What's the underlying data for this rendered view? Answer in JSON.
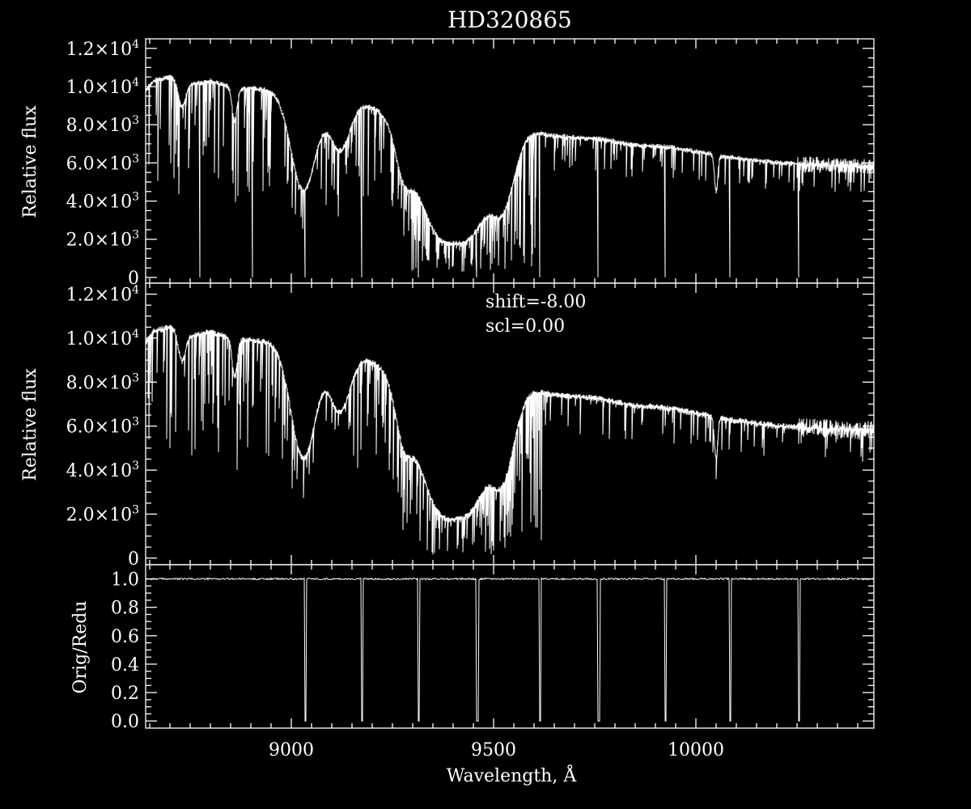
{
  "chart_data": [
    {
      "type": "line",
      "panel": "top",
      "title": "HD320865",
      "ylabel": "Relative flux",
      "xlim": [
        8640,
        10440
      ],
      "ylim": [
        -300,
        12500
      ],
      "yticks": [
        {
          "m": "",
          "e": "",
          "plain": "0",
          "value": 0
        },
        {
          "m": "2.0",
          "e": "3",
          "value": 2000
        },
        {
          "m": "4.0",
          "e": "3",
          "value": 4000
        },
        {
          "m": "6.0",
          "e": "3",
          "value": 6000
        },
        {
          "m": "8.0",
          "e": "3",
          "value": 8000
        },
        {
          "m": "1.0",
          "e": "4",
          "value": 10000
        },
        {
          "m": "1.2",
          "e": "4",
          "value": 12000
        }
      ],
      "order_gaps": [
        8775,
        8905,
        9035,
        9175,
        9315,
        9460,
        9615,
        9760,
        9925,
        10085,
        10255
      ],
      "series": [
        {
          "continuum": [
            [
              8640,
              9800
            ],
            [
              8660,
              10300
            ],
            [
              8700,
              10500
            ],
            [
              8760,
              10100
            ],
            [
              8800,
              10300
            ],
            [
              8860,
              9900
            ],
            [
              8900,
              9900
            ],
            [
              8960,
              9800
            ],
            [
              9040,
              9400
            ],
            [
              9100,
              9300
            ],
            [
              9160,
              9200
            ],
            [
              9220,
              8900
            ],
            [
              9280,
              8600
            ],
            [
              9360,
              8450
            ],
            [
              9440,
              8300
            ],
            [
              9480,
              8200
            ],
            [
              9520,
              8000
            ],
            [
              9580,
              7700
            ],
            [
              9650,
              7400
            ],
            [
              9760,
              7250
            ],
            [
              9840,
              6950
            ],
            [
              9940,
              6800
            ],
            [
              10080,
              6300
            ],
            [
              10200,
              6000
            ],
            [
              10300,
              5900
            ],
            [
              10440,
              5800
            ]
          ],
          "broad_features": [
            [
              8730,
              0.13,
              9
            ],
            [
              8860,
              0.17,
              6
            ],
            [
              9030,
              0.52,
              30
            ],
            [
              9120,
              0.28,
              25
            ],
            [
              9280,
              0.28,
              20
            ],
            [
              9370,
              0.7,
              60
            ],
            [
              9440,
              0.62,
              50
            ],
            [
              9520,
              0.5,
              30
            ],
            [
              10050,
              0.3,
              4
            ]
          ]
        }
      ]
    },
    {
      "type": "line",
      "panel": "middle",
      "ylabel": "Relative flux",
      "annotation": [
        "shift=-8.00",
        "scl=0.00"
      ],
      "xlim": [
        8640,
        10440
      ],
      "ylim": [
        -300,
        12500
      ],
      "yticks": [
        {
          "m": "",
          "e": "",
          "plain": "0",
          "value": 0
        },
        {
          "m": "2.0",
          "e": "3",
          "value": 2000
        },
        {
          "m": "4.0",
          "e": "3",
          "value": 4000
        },
        {
          "m": "6.0",
          "e": "3",
          "value": 6000
        },
        {
          "m": "8.0",
          "e": "3",
          "value": 8000
        },
        {
          "m": "1.0",
          "e": "4",
          "value": 10000
        },
        {
          "m": "1.2",
          "e": "4",
          "value": 12000
        }
      ],
      "series": [
        {
          "continuum": [
            [
              8640,
              9800
            ],
            [
              8660,
              10300
            ],
            [
              8700,
              10500
            ],
            [
              8760,
              10100
            ],
            [
              8800,
              10300
            ],
            [
              8860,
              9900
            ],
            [
              8900,
              9900
            ],
            [
              8960,
              9800
            ],
            [
              9040,
              9400
            ],
            [
              9100,
              9300
            ],
            [
              9160,
              9200
            ],
            [
              9220,
              8900
            ],
            [
              9280,
              8600
            ],
            [
              9360,
              8450
            ],
            [
              9440,
              8300
            ],
            [
              9480,
              8200
            ],
            [
              9520,
              8000
            ],
            [
              9580,
              7700
            ],
            [
              9650,
              7400
            ],
            [
              9760,
              7250
            ],
            [
              9840,
              6950
            ],
            [
              9940,
              6800
            ],
            [
              10080,
              6300
            ],
            [
              10200,
              6000
            ],
            [
              10300,
              5900
            ],
            [
              10440,
              5800
            ]
          ],
          "broad_features": [
            [
              8730,
              0.13,
              9
            ],
            [
              8860,
              0.17,
              6
            ],
            [
              9030,
              0.52,
              30
            ],
            [
              9120,
              0.28,
              25
            ],
            [
              9280,
              0.28,
              20
            ],
            [
              9370,
              0.7,
              60
            ],
            [
              9440,
              0.62,
              50
            ],
            [
              9520,
              0.5,
              30
            ],
            [
              10050,
              0.3,
              4
            ]
          ]
        }
      ]
    },
    {
      "type": "line",
      "panel": "bottom",
      "ylabel": "Orig/Redu",
      "xlabel": "Wavelength, Å",
      "xlim": [
        8640,
        10440
      ],
      "ylim": [
        -0.05,
        1.1
      ],
      "yticks": [
        "0.0",
        "0.2",
        "0.4",
        "0.6",
        "0.8",
        "1.0"
      ],
      "xticks": [
        "9000",
        "9500",
        "10000"
      ],
      "order_gaps": [
        9035,
        9175,
        9315,
        9460,
        9615,
        9760,
        9925,
        10085,
        10255
      ],
      "series": [
        {
          "level": 1.0
        }
      ]
    }
  ]
}
